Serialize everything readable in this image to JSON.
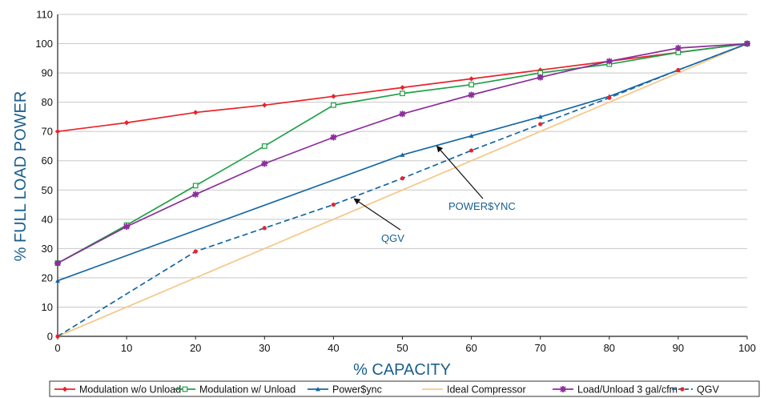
{
  "chart_data": {
    "type": "line",
    "xlabel": "% CAPACITY",
    "ylabel": "% FULL LOAD POWER",
    "xlim": [
      0,
      100
    ],
    "ylim": [
      0,
      110
    ],
    "x_ticks": [
      0,
      10,
      20,
      30,
      40,
      50,
      60,
      70,
      80,
      90,
      100
    ],
    "y_ticks": [
      0,
      10,
      20,
      30,
      40,
      50,
      60,
      70,
      80,
      90,
      100,
      110
    ],
    "grid": "horizontal",
    "legend_position": "bottom",
    "series": [
      {
        "name": "Modulation w/o Unload",
        "color": "#e8232a",
        "marker": "diamond",
        "dashed": false,
        "x": [
          0,
          10,
          20,
          30,
          40,
          50,
          60,
          70,
          80,
          90,
          100
        ],
        "y": [
          70,
          73,
          76.5,
          79,
          82,
          85,
          88,
          91,
          94,
          97,
          100
        ]
      },
      {
        "name": "Modulation w/ Unload",
        "color": "#1fa046",
        "marker": "open-square",
        "dashed": false,
        "x": [
          0,
          10,
          20,
          30,
          40,
          50,
          60,
          70,
          80,
          90,
          100
        ],
        "y": [
          25,
          38,
          51.5,
          65,
          79,
          83,
          86,
          90,
          93,
          97,
          100
        ]
      },
      {
        "name": "Power$ync",
        "color": "#1568a4",
        "marker": "triangle",
        "dashed": false,
        "x": [
          0,
          50,
          60,
          70,
          80,
          90,
          100
        ],
        "y": [
          19,
          62,
          68.5,
          75,
          82,
          91,
          100
        ]
      },
      {
        "name": "Ideal Compressor",
        "color": "#f5c98a",
        "marker": "none",
        "dashed": false,
        "x": [
          0,
          100
        ],
        "y": [
          0,
          100
        ]
      },
      {
        "name": "Load/Unload 3 gal/cfm",
        "color": "#8b2e9b",
        "marker": "star",
        "dashed": false,
        "x": [
          0,
          10,
          20,
          30,
          40,
          50,
          60,
          70,
          80,
          90,
          100
        ],
        "y": [
          25,
          37.5,
          48.5,
          59,
          68,
          76,
          82.5,
          88.5,
          94,
          98.5,
          100
        ]
      },
      {
        "name": "QGV",
        "color": "#1568a4",
        "marker": "dot",
        "markerColor": "#e8232a",
        "dashed": true,
        "x": [
          0,
          20,
          30,
          40,
          50,
          60,
          70,
          80,
          90,
          100
        ],
        "y": [
          0,
          29,
          37,
          45,
          54,
          63.5,
          72.5,
          81.5,
          91,
          100
        ]
      }
    ],
    "annotations": [
      {
        "text": "POWER$YNC",
        "arrow_to_x": 55,
        "arrow_to_y": 65
      },
      {
        "text": "QGV",
        "arrow_to_x": 43,
        "arrow_to_y": 47
      }
    ]
  }
}
